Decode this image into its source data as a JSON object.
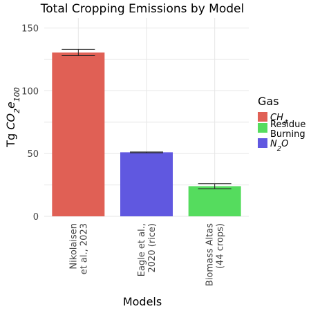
{
  "chart_data": {
    "type": "bar",
    "title": "Total Cropping Emissions by Model",
    "xlabel": "Models",
    "ylabel": "Tg CO2e100",
    "ylim": [
      0,
      158
    ],
    "yticks": [
      0,
      50,
      100,
      150
    ],
    "grid": true,
    "legend_position": "right",
    "legend_title": "Gas",
    "categories": [
      [
        "Nikolaisen",
        "et al., 2023"
      ],
      [
        "Eagle et al.,",
        "2020 (rice)"
      ],
      [
        "Biomass Altas",
        "(44 crops)"
      ]
    ],
    "bars": [
      {
        "category": 0,
        "value": 130.5,
        "err_low": 128.0,
        "err_high": 133.0,
        "gas": "CH4"
      },
      {
        "category": 1,
        "value": 51.0,
        "err_low": 50.6,
        "err_high": 51.3,
        "gas": "N2O"
      },
      {
        "category": 2,
        "value": 24.0,
        "err_low": 22.0,
        "err_high": 26.0,
        "gas": "Residue Burning"
      }
    ],
    "legend": [
      {
        "key": "CH4",
        "lines": [
          "CH",
          "4"
        ],
        "subscript": true,
        "color": "#e06055"
      },
      {
        "key": "Residue Burning",
        "lines": [
          "Residue",
          "Burning"
        ],
        "subscript": false,
        "color": "#55dc5e"
      },
      {
        "key": "N2O",
        "lines": [
          "N",
          "2",
          "O"
        ],
        "subscript": true,
        "color": "#6058e0"
      }
    ]
  }
}
